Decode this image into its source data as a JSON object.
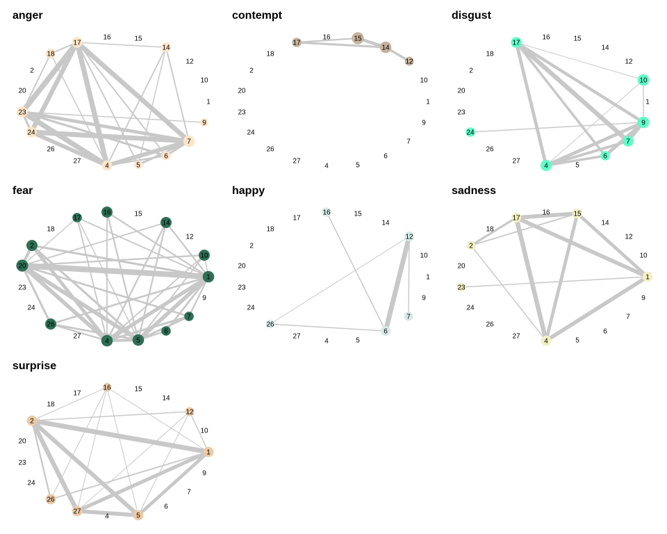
{
  "panels": [
    {
      "title": "anger",
      "node_color": "#fde5c9",
      "nodes": [
        {
          "id": "17",
          "w": 0.7
        },
        {
          "id": "18",
          "w": 0.6
        },
        {
          "id": "23",
          "w": 0.75
        },
        {
          "id": "24",
          "w": 0.7
        },
        {
          "id": "4",
          "w": 0.65
        },
        {
          "id": "5",
          "w": 0.45
        },
        {
          "id": "6",
          "w": 0.5
        },
        {
          "id": "7",
          "w": 0.8
        },
        {
          "id": "9",
          "w": 0.4
        },
        {
          "id": "14",
          "w": 0.6
        }
      ],
      "edges": [
        {
          "s": "17",
          "t": "23",
          "w": 0.85
        },
        {
          "s": "17",
          "t": "24",
          "w": 0.7
        },
        {
          "s": "17",
          "t": "4",
          "w": 0.8
        },
        {
          "s": "17",
          "t": "7",
          "w": 0.75
        },
        {
          "s": "17",
          "t": "18",
          "w": 0.15
        },
        {
          "s": "17",
          "t": "14",
          "w": 0.1
        },
        {
          "s": "17",
          "t": "5",
          "w": 0.15
        },
        {
          "s": "17",
          "t": "6",
          "w": 0.15
        },
        {
          "s": "18",
          "t": "23",
          "w": 0.15
        },
        {
          "s": "18",
          "t": "4",
          "w": 0.1
        },
        {
          "s": "23",
          "t": "24",
          "w": 0.3
        },
        {
          "s": "23",
          "t": "4",
          "w": 0.8
        },
        {
          "s": "23",
          "t": "7",
          "w": 0.5
        },
        {
          "s": "23",
          "t": "6",
          "w": 0.3
        },
        {
          "s": "23",
          "t": "9",
          "w": 0.1
        },
        {
          "s": "24",
          "t": "4",
          "w": 0.6
        },
        {
          "s": "24",
          "t": "7",
          "w": 0.75
        },
        {
          "s": "4",
          "t": "7",
          "w": 0.65
        },
        {
          "s": "4",
          "t": "14",
          "w": 0.15
        },
        {
          "s": "5",
          "t": "7",
          "w": 0.3
        },
        {
          "s": "5",
          "t": "14",
          "w": 0.1
        },
        {
          "s": "6",
          "t": "7",
          "w": 0.3
        },
        {
          "s": "4",
          "t": "6",
          "w": 0.2
        },
        {
          "s": "14",
          "t": "7",
          "w": 0.15
        }
      ]
    },
    {
      "title": "contempt",
      "node_color": "#c7b29d",
      "nodes": [
        {
          "id": "17",
          "w": 0.55
        },
        {
          "id": "15",
          "w": 0.85
        },
        {
          "id": "14",
          "w": 0.8
        },
        {
          "id": "12",
          "w": 0.5
        },
        {
          "id": "16",
          "w": 0.0
        }
      ],
      "edges": [
        {
          "s": "17",
          "t": "15",
          "w": 0.2
        },
        {
          "s": "17",
          "t": "14",
          "w": 0.3
        },
        {
          "s": "15",
          "t": "14",
          "w": 0.45
        },
        {
          "s": "14",
          "t": "12",
          "w": 0.35
        }
      ]
    },
    {
      "title": "disgust",
      "node_color": "#5ffcc8",
      "nodes": [
        {
          "id": "17",
          "w": 0.7
        },
        {
          "id": "10",
          "w": 0.8
        },
        {
          "id": "9",
          "w": 0.8
        },
        {
          "id": "7",
          "w": 0.7
        },
        {
          "id": "6",
          "w": 0.55
        },
        {
          "id": "4",
          "w": 0.75
        },
        {
          "id": "24",
          "w": 0.55
        }
      ],
      "edges": [
        {
          "s": "17",
          "t": "4",
          "w": 0.5
        },
        {
          "s": "17",
          "t": "7",
          "w": 0.7
        },
        {
          "s": "17",
          "t": "6",
          "w": 0.35
        },
        {
          "s": "17",
          "t": "9",
          "w": 0.45
        },
        {
          "s": "17",
          "t": "10",
          "w": 0.05
        },
        {
          "s": "10",
          "t": "9",
          "w": 0.1
        },
        {
          "s": "9",
          "t": "7",
          "w": 0.5
        },
        {
          "s": "9",
          "t": "6",
          "w": 0.5
        },
        {
          "s": "9",
          "t": "4",
          "w": 0.5
        },
        {
          "s": "9",
          "t": "24",
          "w": 0.1
        },
        {
          "s": "7",
          "t": "4",
          "w": 0.4
        },
        {
          "s": "6",
          "t": "4",
          "w": 0.35
        },
        {
          "s": "10",
          "t": "4",
          "w": 0.05
        }
      ]
    },
    {
      "title": "fear",
      "node_color": "#2e6f55",
      "nodes": [
        {
          "id": "17",
          "w": 0.55
        },
        {
          "id": "16",
          "w": 0.75
        },
        {
          "id": "14",
          "w": 0.75
        },
        {
          "id": "10",
          "w": 0.75
        },
        {
          "id": "1",
          "w": 0.8
        },
        {
          "id": "7",
          "w": 0.55
        },
        {
          "id": "6",
          "w": 0.55
        },
        {
          "id": "5",
          "w": 0.8
        },
        {
          "id": "4",
          "w": 0.8
        },
        {
          "id": "26",
          "w": 0.75
        },
        {
          "id": "20",
          "w": 0.85
        },
        {
          "id": "2",
          "w": 0.75
        }
      ],
      "edges": [
        {
          "s": "20",
          "t": "1",
          "w": 0.9
        },
        {
          "s": "20",
          "t": "4",
          "w": 0.6
        },
        {
          "s": "20",
          "t": "5",
          "w": 0.6
        },
        {
          "s": "20",
          "t": "26",
          "w": 0.3
        },
        {
          "s": "20",
          "t": "2",
          "w": 0.4
        },
        {
          "s": "20",
          "t": "10",
          "w": 0.2
        },
        {
          "s": "20",
          "t": "7",
          "w": 0.25
        },
        {
          "s": "20",
          "t": "14",
          "w": 0.15
        },
        {
          "s": "20",
          "t": "17",
          "w": 0.1
        },
        {
          "s": "2",
          "t": "1",
          "w": 0.3
        },
        {
          "s": "2",
          "t": "4",
          "w": 0.5
        },
        {
          "s": "2",
          "t": "5",
          "w": 0.3
        },
        {
          "s": "1",
          "t": "4",
          "w": 0.55
        },
        {
          "s": "1",
          "t": "5",
          "w": 0.6
        },
        {
          "s": "1",
          "t": "26",
          "w": 0.25
        },
        {
          "s": "1",
          "t": "16",
          "w": 0.2
        },
        {
          "s": "1",
          "t": "17",
          "w": 0.15
        },
        {
          "s": "1",
          "t": "14",
          "w": 0.2
        },
        {
          "s": "1",
          "t": "6",
          "w": 0.25
        },
        {
          "s": "1",
          "t": "7",
          "w": 0.2
        },
        {
          "s": "4",
          "t": "5",
          "w": 0.4
        },
        {
          "s": "4",
          "t": "14",
          "w": 0.2
        },
        {
          "s": "4",
          "t": "16",
          "w": 0.15
        },
        {
          "s": "4",
          "t": "17",
          "w": 0.15
        },
        {
          "s": "4",
          "t": "10",
          "w": 0.15
        },
        {
          "s": "4",
          "t": "26",
          "w": 0.2
        },
        {
          "s": "4",
          "t": "7",
          "w": 0.3
        },
        {
          "s": "5",
          "t": "14",
          "w": 0.2
        },
        {
          "s": "5",
          "t": "16",
          "w": 0.2
        },
        {
          "s": "5",
          "t": "10",
          "w": 0.15
        },
        {
          "s": "5",
          "t": "7",
          "w": 0.3
        },
        {
          "s": "5",
          "t": "6",
          "w": 0.2
        },
        {
          "s": "26",
          "t": "5",
          "w": 0.25
        },
        {
          "s": "17",
          "t": "5",
          "w": 0.1
        },
        {
          "s": "10",
          "t": "1",
          "w": 0.1
        }
      ]
    },
    {
      "title": "happy",
      "node_color": "#d7eae8",
      "nodes": [
        {
          "id": "16",
          "w": 0.55
        },
        {
          "id": "12",
          "w": 0.6
        },
        {
          "id": "7",
          "w": 0.5
        },
        {
          "id": "6",
          "w": 0.6
        },
        {
          "id": "26",
          "w": 0.45
        }
      ],
      "edges": [
        {
          "s": "12",
          "t": "6",
          "w": 0.75
        },
        {
          "s": "12",
          "t": "7",
          "w": 0.1
        },
        {
          "s": "16",
          "t": "6",
          "w": 0.1
        },
        {
          "s": "26",
          "t": "6",
          "w": 0.1
        },
        {
          "s": "26",
          "t": "12",
          "w": 0.05
        }
      ]
    },
    {
      "title": "sadness",
      "node_color": "#f2f0c4",
      "nodes": [
        {
          "id": "17",
          "w": 0.6
        },
        {
          "id": "15",
          "w": 0.6
        },
        {
          "id": "1",
          "w": 0.65
        },
        {
          "id": "4",
          "w": 0.65
        },
        {
          "id": "2",
          "w": 0.5
        },
        {
          "id": "23",
          "w": 0.45
        }
      ],
      "edges": [
        {
          "s": "17",
          "t": "15",
          "w": 0.6
        },
        {
          "s": "17",
          "t": "1",
          "w": 0.6
        },
        {
          "s": "17",
          "t": "4",
          "w": 0.7
        },
        {
          "s": "15",
          "t": "1",
          "w": 0.5
        },
        {
          "s": "15",
          "t": "4",
          "w": 0.5
        },
        {
          "s": "4",
          "t": "1",
          "w": 0.6
        },
        {
          "s": "2",
          "t": "17",
          "w": 0.3
        },
        {
          "s": "2",
          "t": "15",
          "w": 0.15
        },
        {
          "s": "2",
          "t": "4",
          "w": 0.1
        },
        {
          "s": "23",
          "t": "1",
          "w": 0.1
        }
      ]
    },
    {
      "title": "surprise",
      "node_color": "#edcaa5",
      "nodes": [
        {
          "id": "16",
          "w": 0.45
        },
        {
          "id": "12",
          "w": 0.5
        },
        {
          "id": "1",
          "w": 0.65
        },
        {
          "id": "5",
          "w": 0.65
        },
        {
          "id": "27",
          "w": 0.65
        },
        {
          "id": "26",
          "w": 0.65
        },
        {
          "id": "2",
          "w": 0.65
        }
      ],
      "edges": [
        {
          "s": "2",
          "t": "1",
          "w": 0.75
        },
        {
          "s": "2",
          "t": "5",
          "w": 0.65
        },
        {
          "s": "2",
          "t": "27",
          "w": 0.7
        },
        {
          "s": "2",
          "t": "26",
          "w": 0.2
        },
        {
          "s": "2",
          "t": "12",
          "w": 0.1
        },
        {
          "s": "1",
          "t": "27",
          "w": 0.55
        },
        {
          "s": "1",
          "t": "5",
          "w": 0.5
        },
        {
          "s": "1",
          "t": "26",
          "w": 0.15
        },
        {
          "s": "1",
          "t": "12",
          "w": 0.1
        },
        {
          "s": "27",
          "t": "5",
          "w": 0.6
        },
        {
          "s": "16",
          "t": "5",
          "w": 0.05
        },
        {
          "s": "16",
          "t": "27",
          "w": 0.05
        },
        {
          "s": "16",
          "t": "1",
          "w": 0.05
        },
        {
          "s": "16",
          "t": "2",
          "w": 0.05
        },
        {
          "s": "12",
          "t": "27",
          "w": 0.05
        },
        {
          "s": "12",
          "t": "5",
          "w": 0.05
        },
        {
          "s": "16",
          "t": "26",
          "w": 0.05
        }
      ]
    }
  ],
  "ring_labels": [
    "1",
    "2",
    "4",
    "5",
    "6",
    "7",
    "9",
    "10",
    "12",
    "14",
    "15",
    "16",
    "17",
    "18",
    "20",
    "23",
    "24",
    "26",
    "27"
  ],
  "edge_color": "#c8c8c8"
}
